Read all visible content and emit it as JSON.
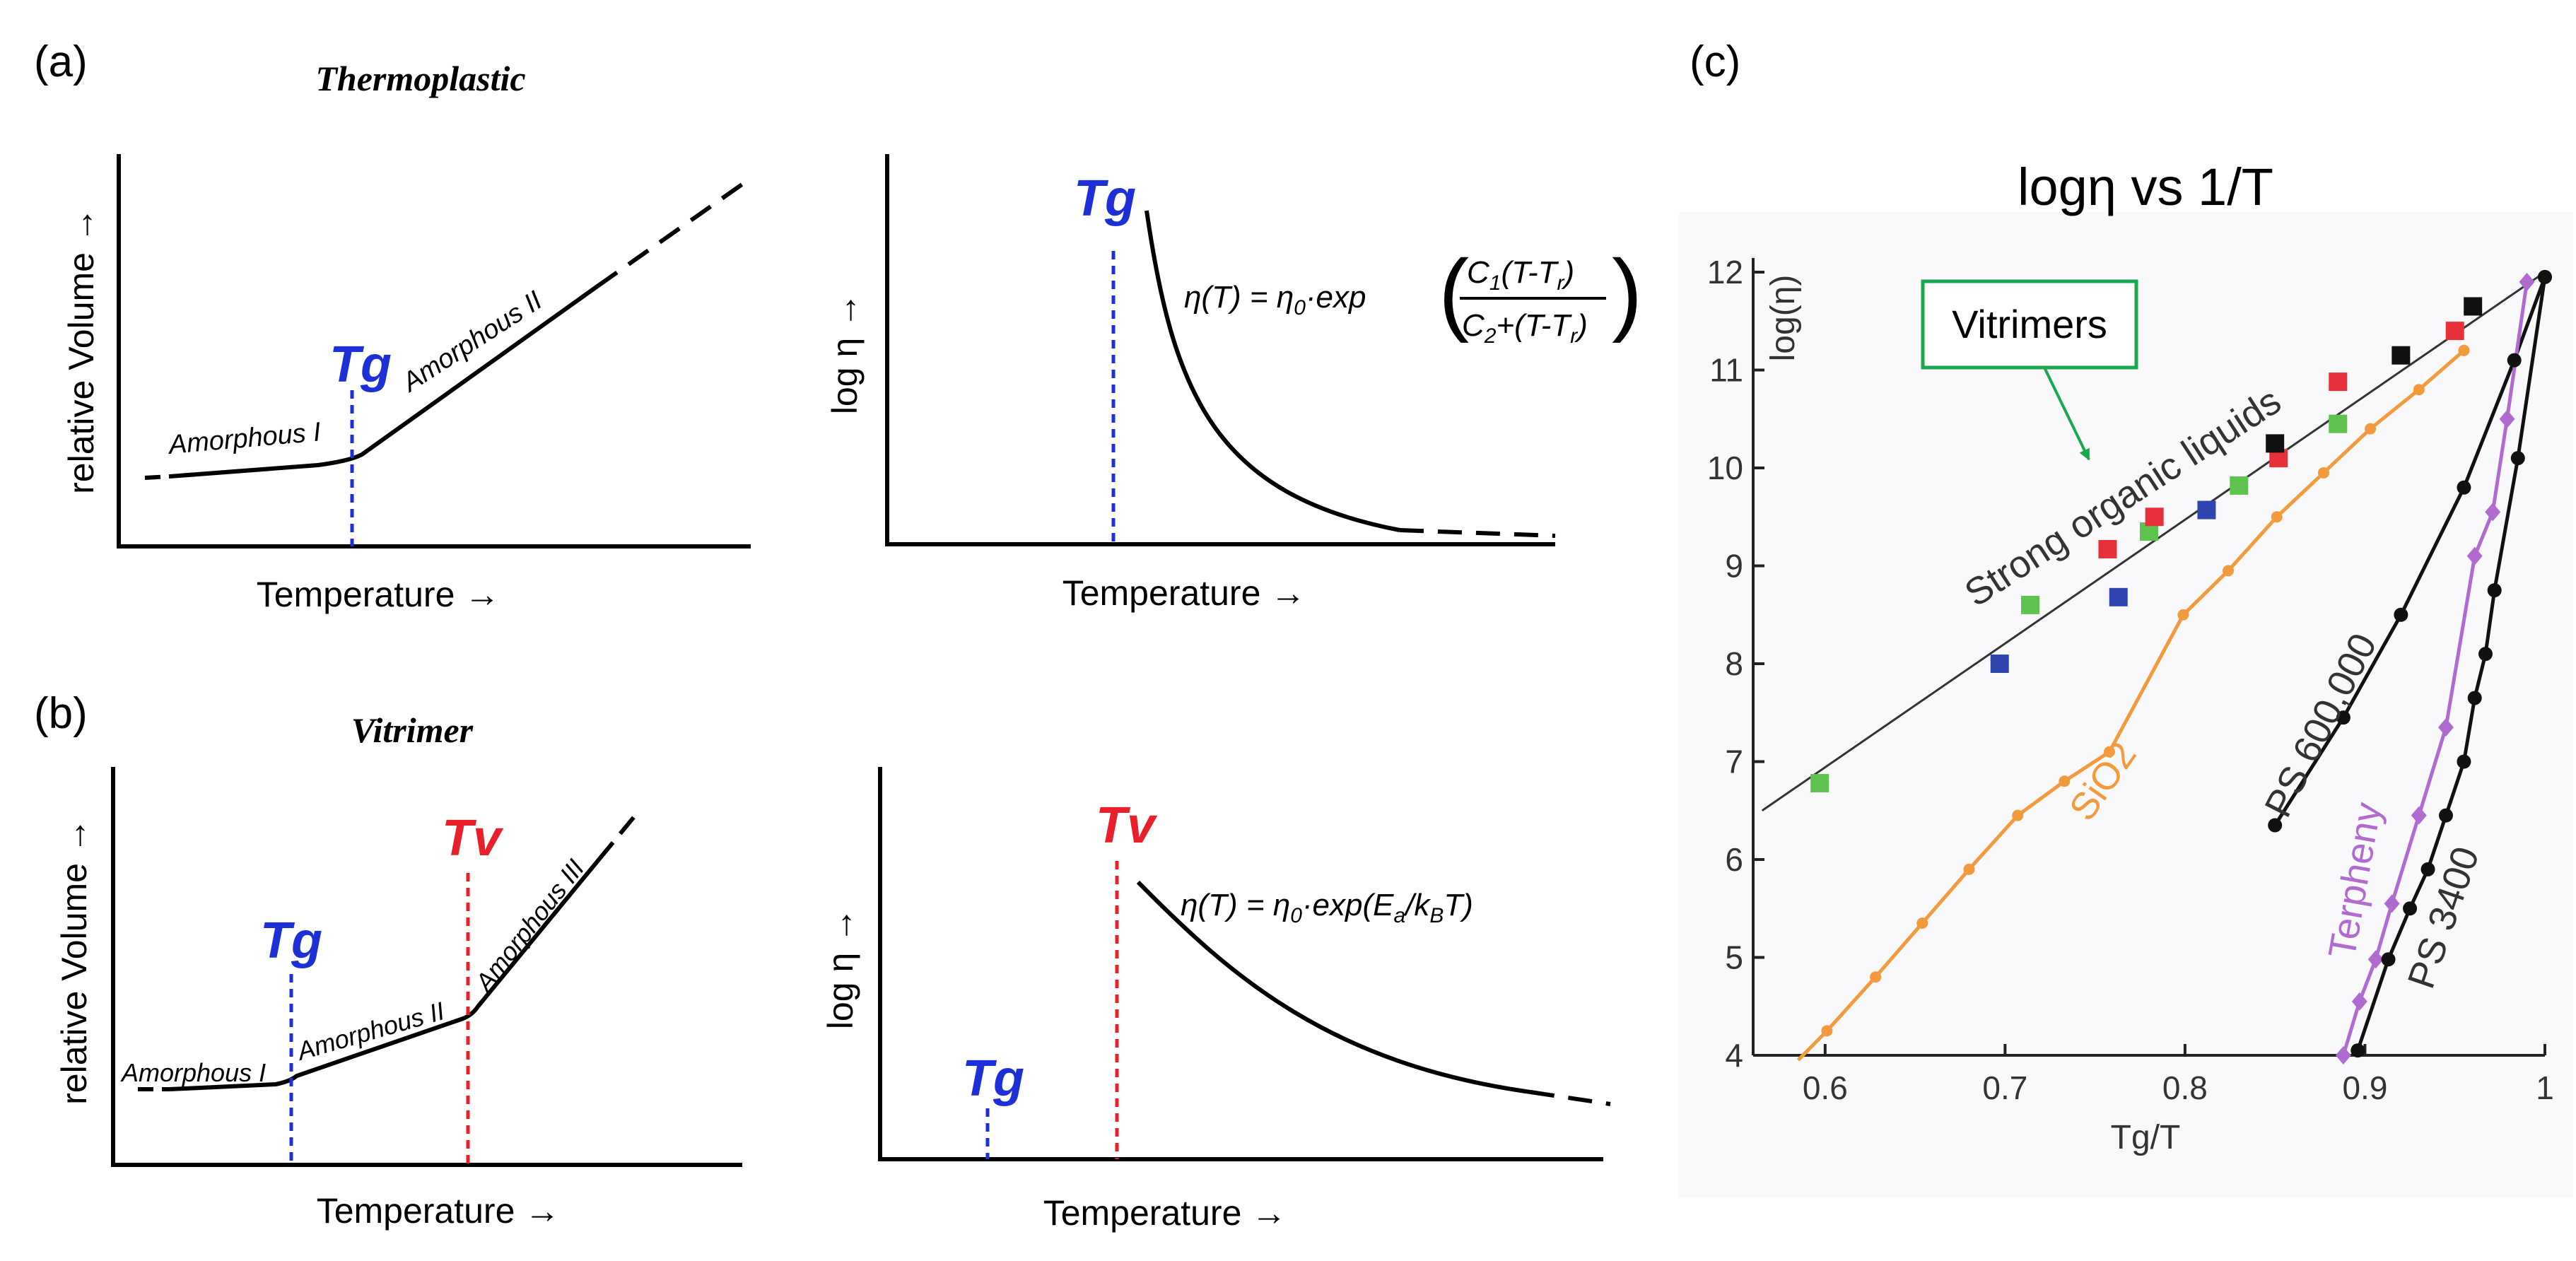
{
  "panels": {
    "a_label": "(a)",
    "b_label": "(b)",
    "c_label": "(c)",
    "a_title": "Thermoplastic",
    "b_title": "Vitrimer"
  },
  "common": {
    "xlabel": "Temperature",
    "ylabel_volume": "relative Volume",
    "ylabel_visc": "log η",
    "arrow": "→"
  },
  "a_volume": {
    "tg": "Tg",
    "region1": "Amorphous I",
    "region2": "Amorphous II"
  },
  "a_visc": {
    "tg": "Tg",
    "eq_lhs": "η(T) = η",
    "eq_sub0": "0",
    "eq_mid": "·exp",
    "num": "C",
    "num_sub": "1",
    "num_rest": "(T-T",
    "num_sub_r": "r",
    "num_close": ")",
    "den": "C",
    "den_sub": "2",
    "den_rest": "+(T-T",
    "den_sub_r": "r",
    "den_close": ")"
  },
  "b_volume": {
    "tg": "Tg",
    "tv": "Tv",
    "region1": "Amorphous I",
    "region2": "Amorphous II",
    "region3": "Amorphous III"
  },
  "b_visc": {
    "tg": "Tg",
    "tv": "Tv",
    "eq_lhs": "η(T) = η",
    "eq_sub0": "0",
    "eq_mid": "·exp(E",
    "eq_sub_a": "a",
    "eq_mid2": "/k",
    "eq_sub_b": "B",
    "eq_end": "T)"
  },
  "colors": {
    "tg": "#1d2fd6",
    "tv": "#e8202a",
    "sio2": "#f39a3c",
    "terphenyl": "#b06ad0",
    "vitrimer_box": "#1aa84e",
    "green_pt": "#5ec24f",
    "red_pt": "#e8303a",
    "blue_pt": "#2f45b0",
    "black_pt": "#111111"
  },
  "chart_data": {
    "type": "scatter",
    "title": "logη vs 1/T",
    "xlabel": "Tg/T",
    "ylabel": "log(η)",
    "xlim": [
      0.56,
      1.0
    ],
    "ylim": [
      4,
      12
    ],
    "xticks": [
      0.6,
      0.7,
      0.8,
      0.9,
      1
    ],
    "xtick_labels": [
      "0.6",
      "0.7",
      "0.8",
      "0.9",
      "1"
    ],
    "yticks": [
      4,
      5,
      6,
      7,
      8,
      9,
      10,
      11,
      12
    ],
    "ytick_labels": [
      "4",
      "5",
      "6",
      "7",
      "8",
      "9",
      "10",
      "11",
      "12"
    ],
    "annotation_box": "Vitrimers",
    "series": [
      {
        "name": "Strong organic liquids",
        "color": "#333333",
        "type": "line",
        "x": [
          0.565,
          1.0
        ],
        "y": [
          6.5,
          12.0
        ]
      },
      {
        "name": "Strong organic liquids (green)",
        "color": "#5ec24f",
        "marker": "square",
        "x": [
          0.597,
          0.714,
          0.78,
          0.83,
          0.885
        ],
        "y": [
          6.78,
          8.6,
          9.35,
          9.82,
          10.45
        ]
      },
      {
        "name": "Strong organic liquids (red)",
        "color": "#e8303a",
        "marker": "square",
        "x": [
          0.757,
          0.783,
          0.852,
          0.885,
          0.95
        ],
        "y": [
          9.17,
          9.5,
          10.1,
          10.88,
          11.4
        ]
      },
      {
        "name": "Strong organic liquids (blue)",
        "color": "#2f45b0",
        "marker": "square",
        "x": [
          0.697,
          0.763,
          0.812
        ],
        "y": [
          8.0,
          8.68,
          9.57
        ]
      },
      {
        "name": "Strong organic liquids (black)",
        "color": "#111111",
        "marker": "square",
        "x": [
          0.85,
          0.92,
          0.96
        ],
        "y": [
          10.25,
          11.15,
          11.65
        ]
      },
      {
        "name": "SiO2",
        "color": "#f39a3c",
        "marker": "circle",
        "x": [
          0.601,
          0.628,
          0.654,
          0.68,
          0.707,
          0.733,
          0.758,
          0.799,
          0.824,
          0.851,
          0.877,
          0.903,
          0.93,
          0.955
        ],
        "y": [
          4.25,
          4.8,
          5.35,
          5.9,
          6.45,
          6.8,
          7.1,
          8.5,
          8.95,
          9.5,
          9.95,
          10.4,
          10.8,
          11.2
        ]
      },
      {
        "name": "PS 600,000",
        "color": "#111111",
        "marker": "circle",
        "x": [
          0.85,
          0.888,
          0.92,
          0.955,
          0.983,
          1.0
        ],
        "y": [
          6.35,
          7.45,
          8.5,
          9.8,
          11.1,
          11.95
        ]
      },
      {
        "name": "Terpheny",
        "color": "#b06ad0",
        "marker": "diamond",
        "x": [
          0.888,
          0.897,
          0.906,
          0.915,
          0.93,
          0.945,
          0.961,
          0.971,
          0.979,
          0.99
        ],
        "y": [
          4.0,
          4.55,
          4.98,
          5.55,
          6.45,
          7.35,
          9.1,
          9.55,
          10.5,
          11.9
        ]
      },
      {
        "name": "PS 3400",
        "color": "#111111",
        "marker": "circle",
        "x": [
          0.896,
          0.913,
          0.925,
          0.935,
          0.945,
          0.955,
          0.961,
          0.967,
          0.972,
          0.985,
          1.0
        ],
        "y": [
          4.05,
          4.98,
          5.5,
          5.9,
          6.45,
          7.0,
          7.65,
          8.1,
          8.75,
          10.1,
          11.95
        ]
      }
    ]
  }
}
